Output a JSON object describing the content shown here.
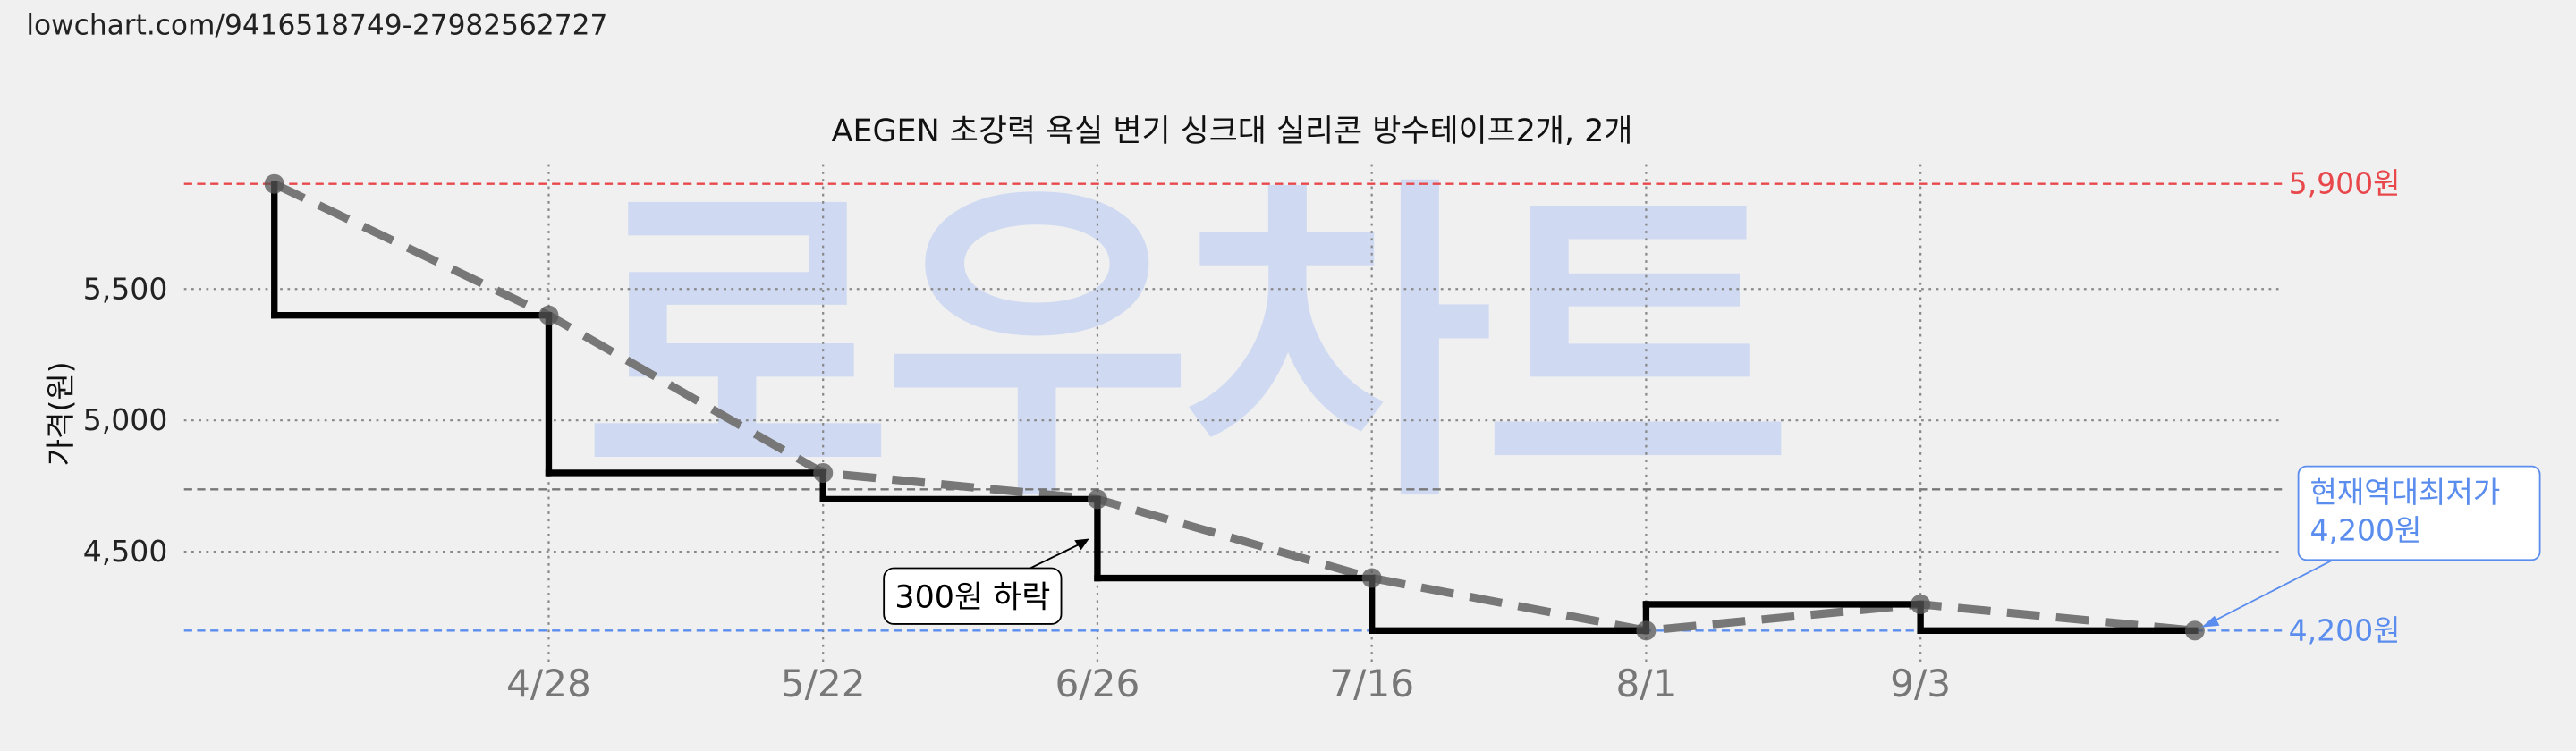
{
  "url": "lowchart.com/9416518749-27982562727",
  "chart_data": {
    "type": "step",
    "title": "AEGEN 초강력 욕실 변기 싱크대 실리콘 방수테이프2개, 2개",
    "y_label": "가격(원)",
    "watermark": "로우차트",
    "categories": [
      null,
      "4/28",
      "5/22",
      "6/26",
      "7/16",
      "8/1",
      "9/3",
      null
    ],
    "values": [
      5900,
      5400,
      4800,
      4700,
      4400,
      4200,
      4300,
      4200
    ],
    "color": "#000000",
    "trend_color": "#777777",
    "ylim": [
      4080,
      6020
    ],
    "yticks": [
      {
        "value": 4500,
        "label": "4,500"
      },
      {
        "value": 5000,
        "label": "5,000"
      },
      {
        "value": 5500,
        "label": "5,500"
      }
    ],
    "grid": true,
    "reference_lines": [
      {
        "value": 5900,
        "label": "5,900원",
        "color": "#e8474b"
      },
      {
        "value": 4200,
        "label": "4,200원",
        "color": "#5b8dee"
      },
      {
        "value": 4737.5,
        "color": "#777777"
      }
    ],
    "annotations": [
      {
        "text": "300원 하락"
      },
      {
        "lines": [
          "현재역대최저가",
          "4,200원"
        ],
        "color": "#5b8dee"
      }
    ]
  }
}
